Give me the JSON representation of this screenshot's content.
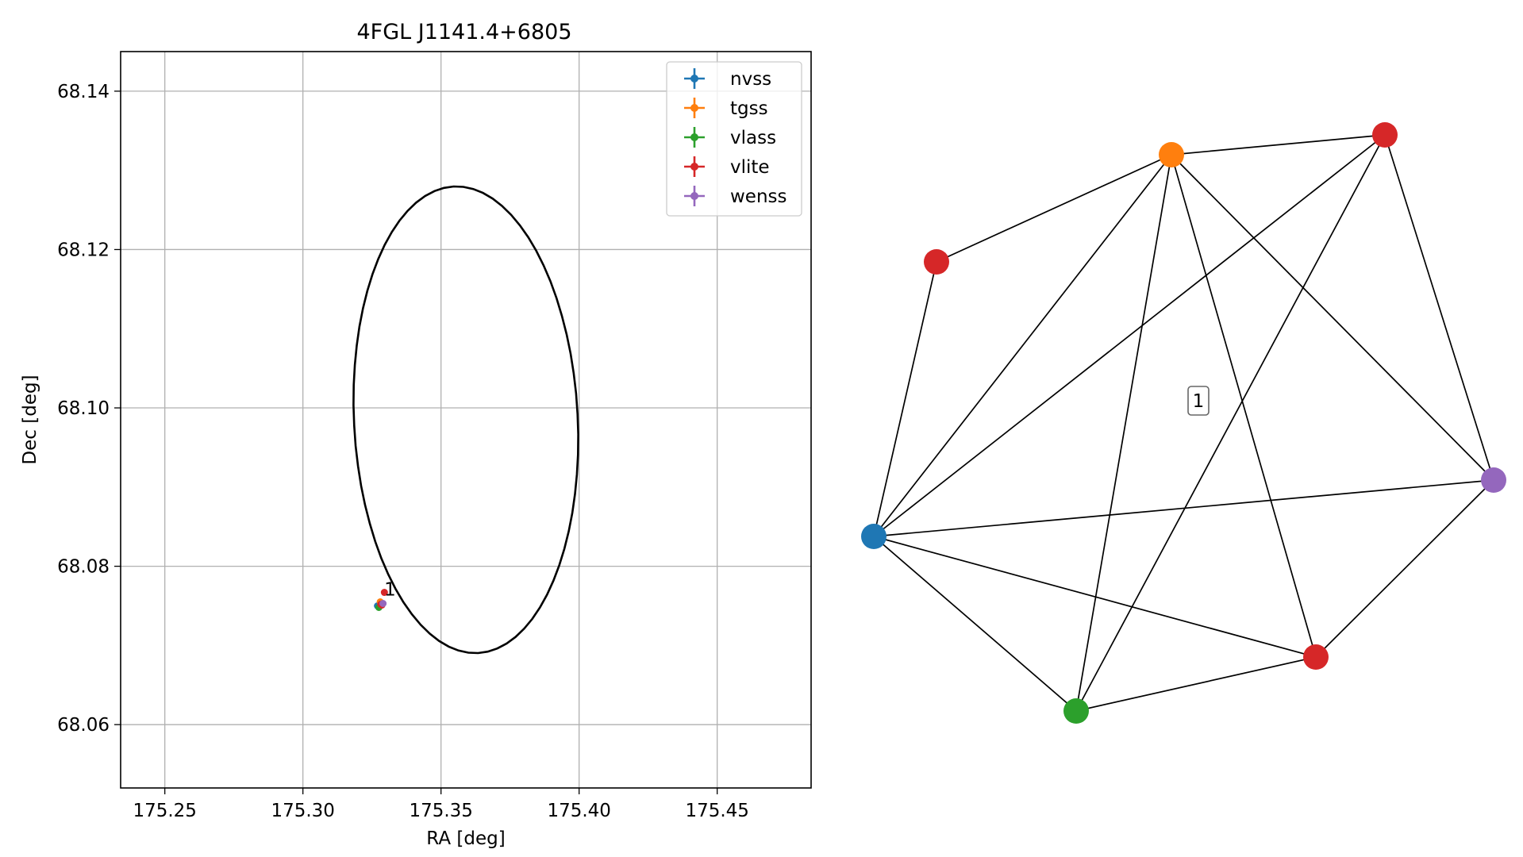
{
  "chart_data": [
    {
      "type": "scatter",
      "title": "4FGL J1141.4+6805",
      "xlabel": "RA [deg]",
      "ylabel": "Dec [deg]",
      "xlim": [
        175.234,
        175.484
      ],
      "ylim": [
        68.052,
        68.145
      ],
      "xticks": [
        175.25,
        175.3,
        175.35,
        175.4,
        175.45
      ],
      "xtick_labels": [
        "175.25",
        "175.30",
        "175.35",
        "175.40",
        "175.45"
      ],
      "yticks": [
        68.06,
        68.08,
        68.1,
        68.12,
        68.14
      ],
      "ytick_labels": [
        "68.06",
        "68.08",
        "68.10",
        "68.12",
        "68.14"
      ],
      "grid": true,
      "legend_position": "top-right",
      "series": [
        {
          "name": "nvss",
          "color": "#1f77b4",
          "points": [
            {
              "x": 175.327,
              "y": 68.075
            }
          ]
        },
        {
          "name": "tgss",
          "color": "#ff7f0e",
          "points": [
            {
              "x": 175.328,
              "y": 68.0755
            }
          ]
        },
        {
          "name": "vlass",
          "color": "#2ca02c",
          "points": [
            {
              "x": 175.3275,
              "y": 68.0748
            }
          ]
        },
        {
          "name": "vlite",
          "color": "#d62728",
          "points": [
            {
              "x": 175.3295,
              "y": 68.0767
            },
            {
              "x": 175.3282,
              "y": 68.0752
            },
            {
              "x": 175.3286,
              "y": 68.0751
            }
          ]
        },
        {
          "name": "wenss",
          "color": "#9467bd",
          "points": [
            {
              "x": 175.329,
              "y": 68.0753
            }
          ]
        }
      ],
      "ellipse": {
        "center": [
          175.359,
          68.0985
        ],
        "semi_axes": [
          0.081,
          0.0295
        ],
        "rotation_deg": -3,
        "color": "#000000"
      },
      "annotations": [
        {
          "text": "1",
          "x": 175.33,
          "y": 68.0765
        }
      ]
    },
    {
      "type": "network",
      "nodes": [
        {
          "id": "nvss",
          "color": "#1f77b4"
        },
        {
          "id": "tgss",
          "color": "#ff7f0e"
        },
        {
          "id": "vlass",
          "color": "#2ca02c"
        },
        {
          "id": "vlite_a",
          "color": "#d62728"
        },
        {
          "id": "vlite_b",
          "color": "#d62728"
        },
        {
          "id": "vlite_c",
          "color": "#d62728"
        },
        {
          "id": "wenss",
          "color": "#9467bd"
        }
      ],
      "edges": [
        [
          "vlite_a",
          "tgss"
        ],
        [
          "vlite_a",
          "nvss"
        ],
        [
          "tgss",
          "vlite_b"
        ],
        [
          "tgss",
          "nvss"
        ],
        [
          "tgss",
          "vlass"
        ],
        [
          "tgss",
          "wenss"
        ],
        [
          "tgss",
          "vlite_c"
        ],
        [
          "vlite_b",
          "nvss"
        ],
        [
          "vlite_b",
          "vlass"
        ],
        [
          "vlite_b",
          "wenss"
        ],
        [
          "nvss",
          "wenss"
        ],
        [
          "nvss",
          "vlass"
        ],
        [
          "nvss",
          "vlite_c"
        ],
        [
          "vlass",
          "vlite_c"
        ],
        [
          "vlite_c",
          "wenss"
        ]
      ],
      "label": "1"
    }
  ]
}
